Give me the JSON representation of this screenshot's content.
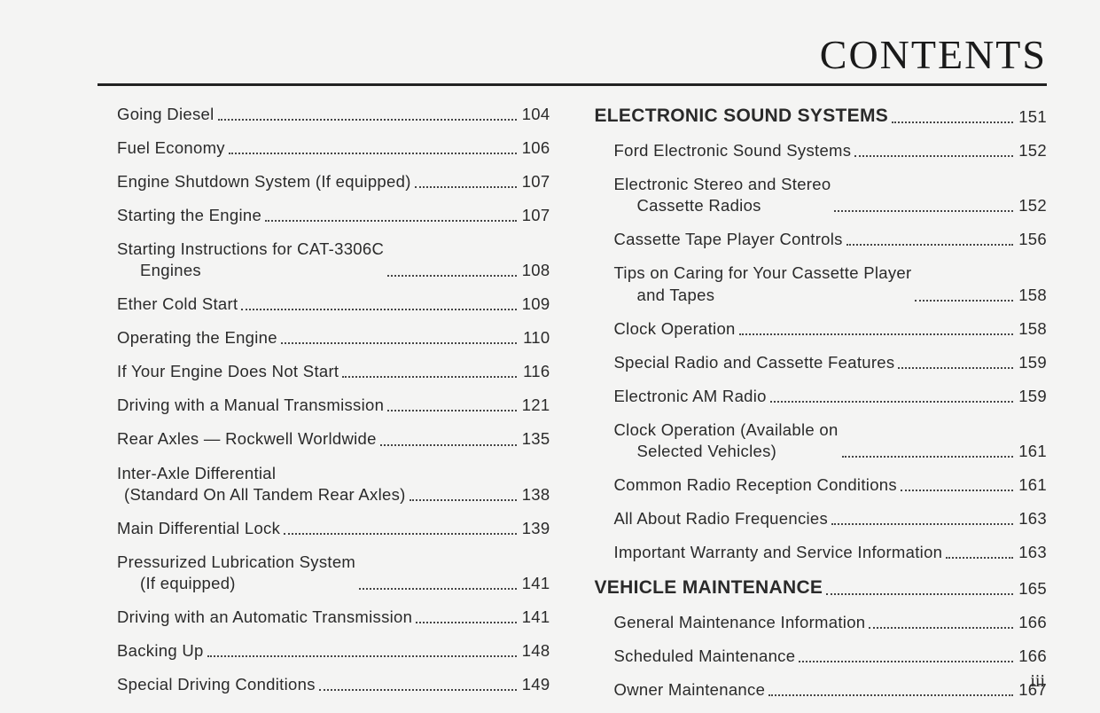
{
  "title": "CONTENTS",
  "folio": "iii",
  "colors": {
    "background": "#f4f4f3",
    "text": "#2a2a2a",
    "rule": "#222222",
    "dots": "#444444"
  },
  "typography": {
    "body_font": "Arial, Helvetica, sans-serif",
    "title_font": "Georgia, Times New Roman, serif",
    "body_size_pt": 14,
    "title_size_pt": 34
  },
  "left_column": [
    {
      "label": "Going Diesel",
      "page": "104",
      "indent": "sub"
    },
    {
      "label": "Fuel Economy",
      "page": "106",
      "indent": "sub"
    },
    {
      "label": "Engine Shutdown System (If equipped)",
      "page": "107",
      "indent": "sub"
    },
    {
      "label": "Starting the Engine",
      "page": "107",
      "indent": "sub"
    },
    {
      "label": "Starting Instructions for CAT-3306C",
      "cont": "Engines",
      "page": "108",
      "indent": "sub"
    },
    {
      "label": "Ether Cold Start",
      "page": "109",
      "indent": "sub"
    },
    {
      "label": "Operating the Engine",
      "page": "110",
      "indent": "sub"
    },
    {
      "label": "If Your Engine Does Not Start",
      "page": "116",
      "indent": "sub"
    },
    {
      "label": "Driving with a Manual Transmission",
      "page": "121",
      "indent": "sub"
    },
    {
      "label": "Rear Axles — Rockwell Worldwide",
      "page": "135",
      "indent": "sub"
    },
    {
      "label": "Inter-Axle Differential",
      "cont": "(Standard On All Tandem Rear Axles)",
      "page": "138",
      "indent": "sub",
      "cont_indent": 8
    },
    {
      "label": "Main Differential Lock",
      "page": "139",
      "indent": "sub"
    },
    {
      "label": "Pressurized Lubrication System",
      "cont": "(If equipped)",
      "page": "141",
      "indent": "sub"
    },
    {
      "label": "Driving with an Automatic Transmission",
      "page": "141",
      "indent": "sub"
    },
    {
      "label": "Backing Up",
      "page": "148",
      "indent": "sub"
    },
    {
      "label": "Special Driving Conditions",
      "page": "149",
      "indent": "sub"
    }
  ],
  "right_column": [
    {
      "label": "ELECTRONIC SOUND SYSTEMS",
      "page": "151",
      "indent": "section"
    },
    {
      "label": "Ford Electronic Sound Systems",
      "page": "152",
      "indent": "sub"
    },
    {
      "label": "Electronic Stereo and Stereo",
      "cont": "Cassette Radios",
      "page": "152",
      "indent": "sub"
    },
    {
      "label": "Cassette Tape Player Controls",
      "page": "156",
      "indent": "sub"
    },
    {
      "label": "Tips on Caring for Your Cassette Player",
      "cont": "and Tapes",
      "page": "158",
      "indent": "sub"
    },
    {
      "label": "Clock Operation",
      "page": "158",
      "indent": "sub"
    },
    {
      "label": "Special Radio and Cassette Features",
      "page": "159",
      "indent": "sub"
    },
    {
      "label": "Electronic AM Radio",
      "page": "159",
      "indent": "sub"
    },
    {
      "label": "Clock Operation (Available on",
      "cont": "Selected Vehicles)",
      "page": "161",
      "indent": "sub"
    },
    {
      "label": "Common Radio Reception Conditions",
      "page": "161",
      "indent": "sub"
    },
    {
      "label": "All About Radio Frequencies",
      "page": "163",
      "indent": "sub"
    },
    {
      "label": "Important Warranty and Service Information",
      "page": "163",
      "indent": "sub"
    },
    {
      "label": "VEHICLE MAINTENANCE",
      "page": "165",
      "indent": "section"
    },
    {
      "label": "General Maintenance Information",
      "page": "166",
      "indent": "sub"
    },
    {
      "label": "Scheduled Maintenance",
      "page": "166",
      "indent": "sub"
    },
    {
      "label": "Owner Maintenance",
      "page": "167",
      "indent": "sub"
    }
  ]
}
